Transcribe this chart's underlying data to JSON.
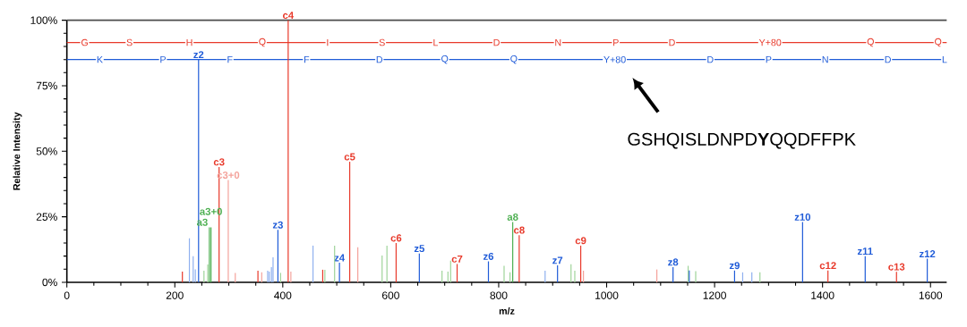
{
  "chart_data": {
    "type": "bar",
    "xlabel": "m/z",
    "ylabel": "Relative Intensity",
    "xlim": [
      0,
      1630
    ],
    "ylim": [
      0,
      100
    ],
    "xticks": [
      0,
      200,
      400,
      600,
      800,
      1000,
      1200,
      1400,
      1600
    ],
    "yticks": [
      {
        "value": 0,
        "label": "0%"
      },
      {
        "value": 25,
        "label": "25%"
      },
      {
        "value": 50,
        "label": "50%"
      },
      {
        "value": 75,
        "label": "75%"
      },
      {
        "value": 100,
        "label": "100%"
      }
    ],
    "grid": false,
    "series": [
      {
        "color": "#e8392a",
        "x": [
          214,
          282,
          354,
          410,
          474,
          524,
          610,
          723,
          838,
          952,
          1410,
          1537
        ],
        "values": [
          4.1,
          44,
          4.4,
          100,
          4.8,
          46,
          15,
          7,
          18,
          14,
          4.5,
          4
        ],
        "value_labels": [
          null,
          "c3",
          null,
          "c4",
          null,
          "c5",
          "c6",
          "c7",
          "c8",
          "c9",
          "c12",
          "c13"
        ]
      },
      {
        "color": "#f4a29b",
        "x": [
          299,
          312,
          361,
          415,
          539,
          957,
          1093
        ],
        "values": [
          39,
          3.6,
          3.8,
          4.1,
          13.4,
          4.4,
          4.9
        ],
        "value_labels": [
          "c3+0",
          null,
          null,
          null,
          null,
          null,
          null
        ]
      },
      {
        "color": "#1f5bd8",
        "x": [
          244,
          391,
          505,
          653,
          781,
          909,
          1123,
          1153,
          1237,
          1363,
          1479,
          1594
        ],
        "values": [
          85,
          20,
          7.5,
          11,
          8,
          6.5,
          5.8,
          4.5,
          4.5,
          23,
          10,
          9
        ],
        "value_labels": [
          "z2",
          "z3",
          "z4",
          "z5",
          "z6",
          "z7",
          "z8",
          null,
          "z9",
          "z10",
          "z11",
          "z12"
        ]
      },
      {
        "color": "#8fb0ef",
        "x": [
          227,
          234,
          238,
          372,
          375,
          379,
          382,
          456,
          886,
          1252,
          1269
        ],
        "values": [
          16.8,
          10,
          4.9,
          4.4,
          4.1,
          5.8,
          9.5,
          14,
          4.4,
          3.8,
          3.8
        ],
        "value_labels": [
          null,
          null,
          null,
          null,
          null,
          null,
          null,
          null,
          null,
          null,
          null
        ]
      },
      {
        "color": "#4caf50",
        "x": [
          264,
          267,
          826
        ],
        "values": [
          21,
          21,
          23
        ],
        "value_labels": [
          "a3",
          "a3+0",
          "a8"
        ]
      },
      {
        "color": "#9fd49a",
        "x": [
          254,
          261,
          396,
          478,
          496,
          584,
          593,
          695,
          706,
          711,
          810,
          821,
          934,
          941,
          1151,
          1165,
          1284
        ],
        "values": [
          4.4,
          6.8,
          3.6,
          4.8,
          14,
          10.2,
          14,
          4.4,
          4.1,
          8.3,
          6.3,
          3.8,
          6.9,
          4.4,
          6.3,
          4.3,
          3.8
        ],
        "value_labels": [
          null,
          null,
          null,
          null,
          null,
          null,
          null,
          null,
          null,
          null,
          null,
          null,
          null,
          null,
          null,
          null,
          null
        ]
      }
    ],
    "ref_lines": [
      {
        "axis": "y",
        "value": 91.5,
        "color": "#e8392a"
      },
      {
        "axis": "y",
        "value": 85,
        "color": "#1f5bd8"
      }
    ],
    "annotations": [
      {
        "text": "G",
        "x": 33,
        "y": 91.5
      },
      {
        "text": "S",
        "x": 116,
        "y": 91.5
      },
      {
        "text": "H",
        "x": 227,
        "y": 91.5
      },
      {
        "text": "Q",
        "x": 362,
        "y": 91.5
      },
      {
        "text": "I",
        "x": 483,
        "y": 91.5
      },
      {
        "text": "S",
        "x": 584,
        "y": 91.5
      },
      {
        "text": "L",
        "x": 683,
        "y": 91.5
      },
      {
        "text": "D",
        "x": 796,
        "y": 91.5
      },
      {
        "text": "N",
        "x": 910,
        "y": 91.5
      },
      {
        "text": "P",
        "x": 1017,
        "y": 91.5
      },
      {
        "text": "D",
        "x": 1121,
        "y": 91.5
      },
      {
        "text": "Y+80",
        "x": 1303,
        "y": 91.5
      },
      {
        "text": "Q",
        "x": 1489,
        "y": 91.5
      },
      {
        "text": "Q",
        "x": 1614,
        "y": 91.5
      },
      {
        "text": "K",
        "x": 61,
        "y": 85
      },
      {
        "text": "P",
        "x": 178,
        "y": 85
      },
      {
        "text": "F",
        "x": 302,
        "y": 85
      },
      {
        "text": "F",
        "x": 444,
        "y": 85
      },
      {
        "text": "D",
        "x": 579,
        "y": 85
      },
      {
        "text": "Q",
        "x": 700,
        "y": 85
      },
      {
        "text": "Q",
        "x": 828,
        "y": 85
      },
      {
        "text": "Y+80",
        "x": 1015,
        "y": 85
      },
      {
        "text": "D",
        "x": 1192,
        "y": 85
      },
      {
        "text": "P",
        "x": 1300,
        "y": 85
      },
      {
        "text": "N",
        "x": 1405,
        "y": 85
      },
      {
        "text": "D",
        "x": 1521,
        "y": 85
      },
      {
        "text": "L",
        "x": 1626,
        "y": 85
      },
      "GSHQISLDNPD**Y**QQDFFPK"
    ]
  }
}
